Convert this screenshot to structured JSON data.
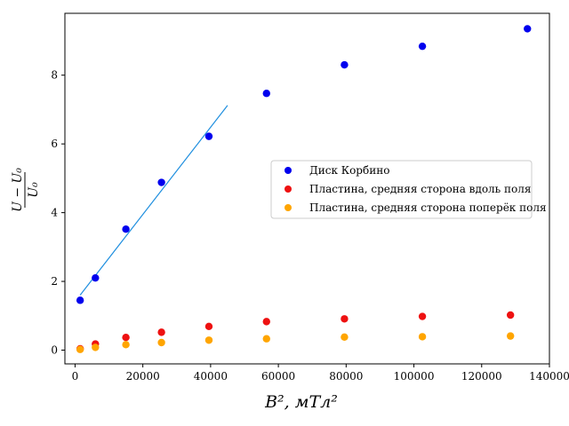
{
  "chart_data": {
    "type": "scatter",
    "xlabel": "B², мТл²",
    "ylabel_numerator": "U − U₀",
    "ylabel_denominator": "U₀",
    "xlim": [
      -3000,
      140000
    ],
    "ylim": [
      -0.4,
      9.8
    ],
    "xticks": [
      0,
      20000,
      40000,
      60000,
      80000,
      100000,
      120000,
      140000
    ],
    "yticks": [
      0,
      2,
      4,
      6,
      8
    ],
    "grid": false,
    "legend_position": "center-right",
    "series": [
      {
        "name": "Диск Корбино",
        "color": "#0000ee",
        "x": [
          1500,
          6000,
          15000,
          25500,
          39500,
          56500,
          79500,
          102500,
          133500
        ],
        "y": [
          1.45,
          2.1,
          3.52,
          4.88,
          6.22,
          7.47,
          8.3,
          8.84,
          9.35
        ]
      },
      {
        "name": "Пластина, средняя сторона вдоль поля",
        "color": "#ee1111",
        "x": [
          1500,
          6000,
          15000,
          25500,
          39500,
          56500,
          79500,
          102500,
          128500
        ],
        "y": [
          0.04,
          0.18,
          0.37,
          0.52,
          0.69,
          0.83,
          0.91,
          0.98,
          1.02
        ]
      },
      {
        "name": "Пластина, средняя сторона поперёк поля",
        "color": "#ffa500",
        "x": [
          1500,
          6000,
          15000,
          25500,
          39500,
          56500,
          79500,
          102500,
          128500
        ],
        "y": [
          0.02,
          0.08,
          0.16,
          0.22,
          0.29,
          0.33,
          0.38,
          0.39,
          0.41
        ]
      }
    ],
    "fit_line": {
      "color": "#1f8fdf",
      "x": [
        1500,
        45000
      ],
      "y": [
        1.6,
        7.12
      ]
    }
  }
}
